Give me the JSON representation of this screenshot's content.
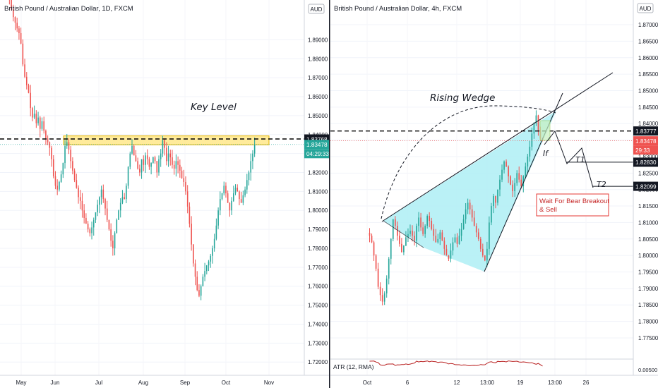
{
  "colors": {
    "up": "#26a69a",
    "down": "#ef5350",
    "wedge_fill": "#b2f0f5",
    "key_fill": "#ffe88a",
    "key_border": "#e3b400",
    "tag_dark": "#131722",
    "tag_green": "#26a69a",
    "tag_red": "#ef5350",
    "atr_line": "#b71c1c",
    "callout_border": "#e53935",
    "callout_text": "#c62828"
  },
  "left_panel": {
    "title": "British Pound / Australian Dollar, 1D, FXCM",
    "axis_badge": "AUD",
    "key_level_label": "Key Level",
    "price_tags": [
      {
        "label": "1.83768",
        "value": 1.83768,
        "style": "dark"
      },
      {
        "label": "1.83478",
        "value": 1.83478,
        "style": "green"
      },
      {
        "label": "04:29:33",
        "value": 1.8305,
        "style": "green"
      }
    ],
    "x_labels": [
      "May",
      "Jun",
      "Jul",
      "Aug",
      "Sep",
      "Oct",
      "Nov"
    ]
  },
  "right_panel": {
    "title": "British Pound / Australian Dollar, 4h, FXCM",
    "axis_badge": "AUD",
    "pattern_label": "Rising Wedge",
    "if_label": "If",
    "t1_label": "T1",
    "t2_label": "T2",
    "callout_lines": [
      "Wait For Bear Breakout",
      "& Sell"
    ],
    "indicator_label": "ATR (12, RMA)",
    "indicator_tick": "0.00500",
    "price_tags": [
      {
        "label": "1.83777",
        "value": 1.83777,
        "style": "dark"
      },
      {
        "label": "1.83478",
        "value": 1.83478,
        "style": "red"
      },
      {
        "label": "29:33",
        "value": 1.8305,
        "style": "red"
      },
      {
        "label": "1.82830",
        "value": 1.8283,
        "style": "dark"
      },
      {
        "label": "1.82099",
        "value": 1.82099,
        "style": "dark"
      }
    ],
    "x_labels": [
      "Oct",
      "6",
      "12",
      "13:00",
      "19",
      "13:00",
      "26"
    ]
  },
  "chart_data": [
    {
      "type": "candlestick",
      "title": "British Pound / Australian Dollar, 1D, FXCM",
      "timeframe": "1D",
      "ylim": [
        1.713,
        1.911
      ],
      "y_ticks": [
        "1.72000",
        "1.73000",
        "1.74000",
        "1.75000",
        "1.76000",
        "1.77000",
        "1.78000",
        "1.79000",
        "1.80000",
        "1.81000",
        "1.82000",
        "1.83000",
        "1.84000",
        "1.85000",
        "1.86000",
        "1.87000",
        "1.88000",
        "1.89000"
      ],
      "x_ticks": [
        "May",
        "Jun",
        "Jul",
        "Aug",
        "Sep",
        "Oct",
        "Nov"
      ],
      "key_level": [
        1.8346,
        1.8393
      ],
      "horizontal_line": 1.83768,
      "last_price": 1.83478,
      "closes": [
        1.9112,
        1.9065,
        1.902,
        1.899,
        1.896,
        1.8935,
        1.888,
        1.877,
        1.8705,
        1.866,
        1.862,
        1.854,
        1.849,
        1.851,
        1.846,
        1.849,
        1.843,
        1.847,
        1.842,
        1.838,
        1.836,
        1.833,
        1.827,
        1.818,
        1.813,
        1.811,
        1.815,
        1.819,
        1.825,
        1.834,
        1.836,
        1.832,
        1.826,
        1.821,
        1.816,
        1.812,
        1.807,
        1.805,
        1.8,
        1.796,
        1.793,
        1.79,
        1.788,
        1.791,
        1.795,
        1.799,
        1.803,
        1.807,
        1.811,
        1.806,
        1.801,
        1.795,
        1.79,
        1.784,
        1.78,
        1.788,
        1.795,
        1.8,
        1.804,
        1.807,
        1.806,
        1.813,
        1.823,
        1.83,
        1.834,
        1.829,
        1.826,
        1.822,
        1.82,
        1.827,
        1.824,
        1.829,
        1.827,
        1.823,
        1.825,
        1.828,
        1.826,
        1.82,
        1.827,
        1.83,
        1.837,
        1.833,
        1.826,
        1.83,
        1.828,
        1.824,
        1.822,
        1.826,
        1.824,
        1.821,
        1.817,
        1.815,
        1.81,
        1.802,
        1.793,
        1.782,
        1.772,
        1.765,
        1.758,
        1.755,
        1.76,
        1.765,
        1.768,
        1.771,
        1.773,
        1.776,
        1.78,
        1.785,
        1.792,
        1.8,
        1.806,
        1.809,
        1.813,
        1.809,
        1.804,
        1.8,
        1.805,
        1.809,
        1.812,
        1.81,
        1.806,
        1.804,
        1.808,
        1.811,
        1.816,
        1.82,
        1.826,
        1.83,
        1.8348
      ]
    },
    {
      "type": "candlestick",
      "title": "British Pound / Australian Dollar, 4h, FXCM",
      "timeframe": "4h",
      "ylim": [
        1.7705,
        1.8775
      ],
      "y_ticks": [
        "1.77500",
        "1.78000",
        "1.78500",
        "1.79000",
        "1.79500",
        "1.80000",
        "1.80500",
        "1.81000",
        "1.81500",
        "1.82000",
        "1.82500",
        "1.83000",
        "1.83500",
        "1.84000",
        "1.84500",
        "1.85000",
        "1.85500",
        "1.86000",
        "1.86500",
        "1.87000"
      ],
      "x_ticks": [
        "Oct",
        "6",
        "12",
        "13:00",
        "19",
        "13:00",
        "26"
      ],
      "horizontal_line": 1.83777,
      "last_price": 1.83478,
      "targets": [
        {
          "label": "T1",
          "value": 1.8283
        },
        {
          "label": "T2",
          "value": 1.82099
        }
      ],
      "wedge": {
        "upper": [
          [
            2,
            1.8115
          ],
          [
            58,
            1.8448
          ]
        ],
        "lower": [
          [
            18,
            1.807
          ],
          [
            38,
            1.7975
          ],
          [
            58,
            1.8448
          ]
        ]
      },
      "closes": [
        1.806,
        1.804,
        1.8,
        1.796,
        1.7905,
        1.788,
        1.786,
        1.7885,
        1.793,
        1.799,
        1.805,
        1.811,
        1.809,
        1.806,
        1.8035,
        1.801,
        1.803,
        1.8055,
        1.8065,
        1.8075,
        1.806,
        1.8045,
        1.809,
        1.8115,
        1.8085,
        1.8065,
        1.809,
        1.812,
        1.8105,
        1.808,
        1.806,
        1.804,
        1.805,
        1.807,
        1.8045,
        1.802,
        1.8,
        1.799,
        1.8015,
        1.804,
        1.8055,
        1.8035,
        1.806,
        1.808,
        1.811,
        1.814,
        1.816,
        1.814,
        1.8115,
        1.809,
        1.807,
        1.805,
        1.802,
        1.8,
        1.7985,
        1.802,
        1.81,
        1.815,
        1.818,
        1.816,
        1.82,
        1.823,
        1.826,
        1.8285,
        1.827,
        1.824,
        1.8215,
        1.8195,
        1.822,
        1.825,
        1.823,
        1.821,
        1.824,
        1.827,
        1.83,
        1.833,
        1.837,
        1.84,
        1.8425,
        1.838,
        1.8355,
        1.8348
      ]
    }
  ]
}
